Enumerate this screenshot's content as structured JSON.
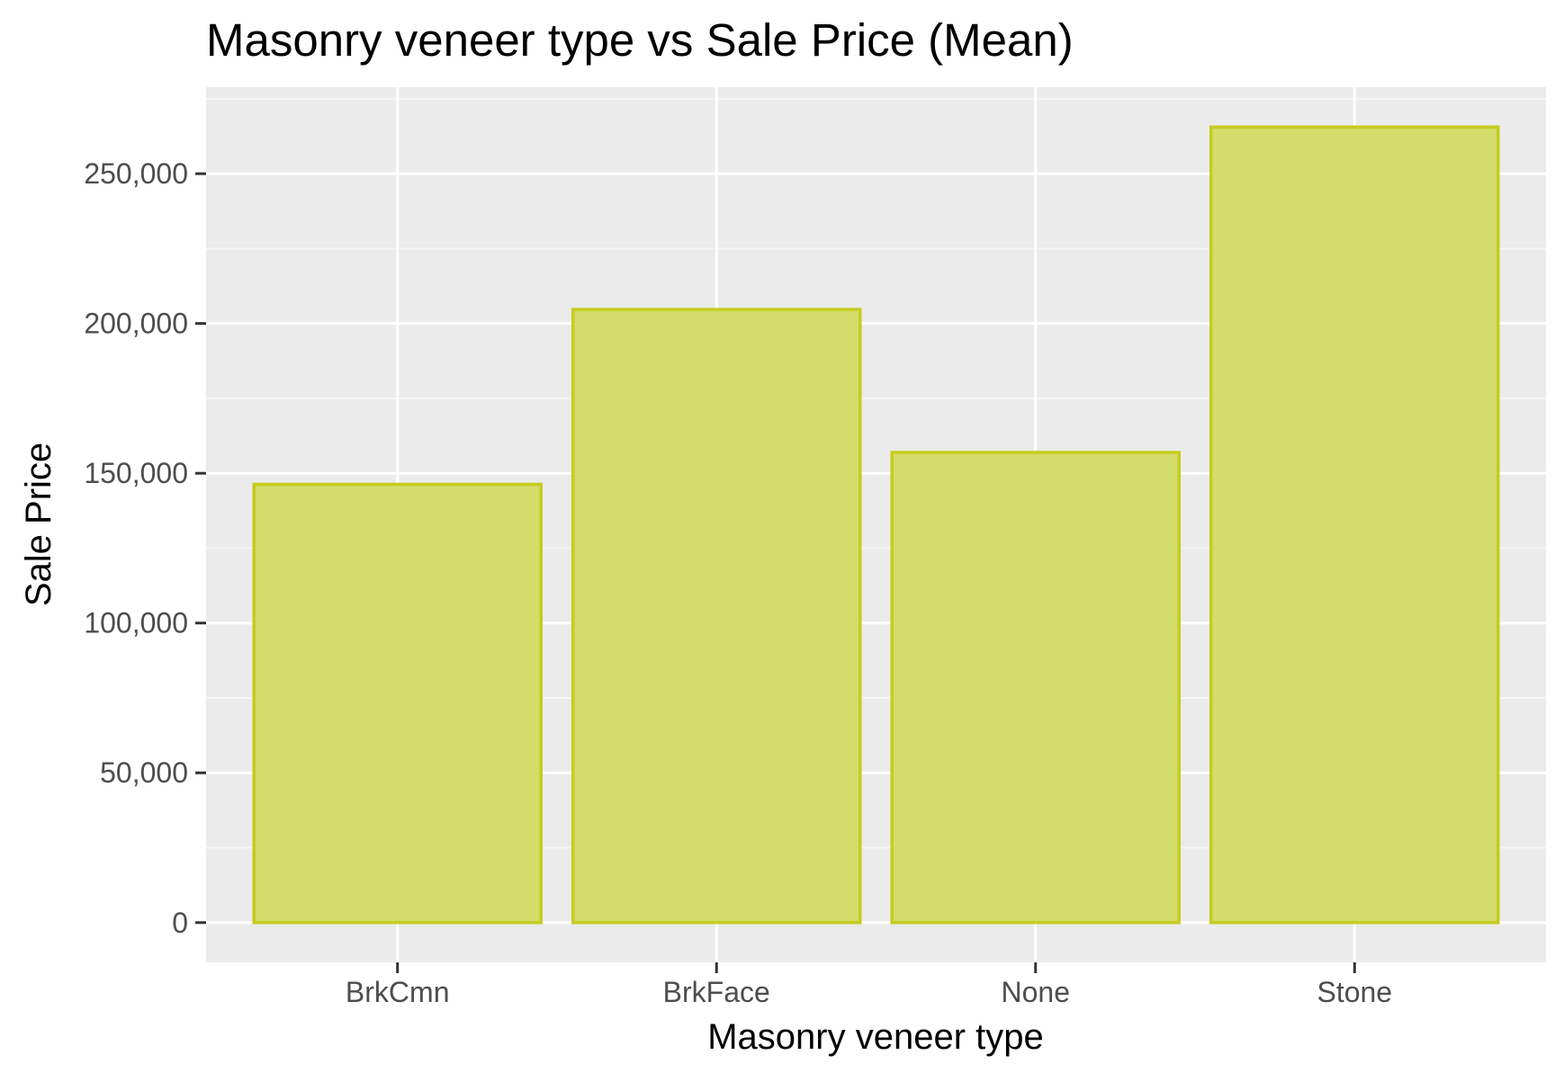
{
  "chart_data": {
    "type": "bar",
    "title": "Masonry veneer type vs Sale Price (Mean)",
    "xlabel": "Masonry veneer type",
    "ylabel": "Sale Price",
    "categories": [
      "BrkCmn",
      "BrkFace",
      "None",
      "Stone"
    ],
    "values": [
      146318,
      204692,
      156958,
      265584
    ],
    "ylim": [
      -13279,
      278863
    ],
    "y_ticks": [
      0,
      50000,
      100000,
      150000,
      200000,
      250000
    ],
    "y_tick_labels": [
      "0",
      "50,000",
      "100,000",
      "150,000",
      "200,000",
      "250,000"
    ],
    "grid": true,
    "legend": "none",
    "colors": {
      "panel_background": "#ebebeb",
      "grid_major": "#ffffff",
      "grid_minor": "#f5f5f5",
      "bar_fill": "#d4dc6a",
      "bar_stroke": "#c6cc1e",
      "tick_text": "#4d4d4d",
      "tick_mark": "#333333"
    }
  }
}
